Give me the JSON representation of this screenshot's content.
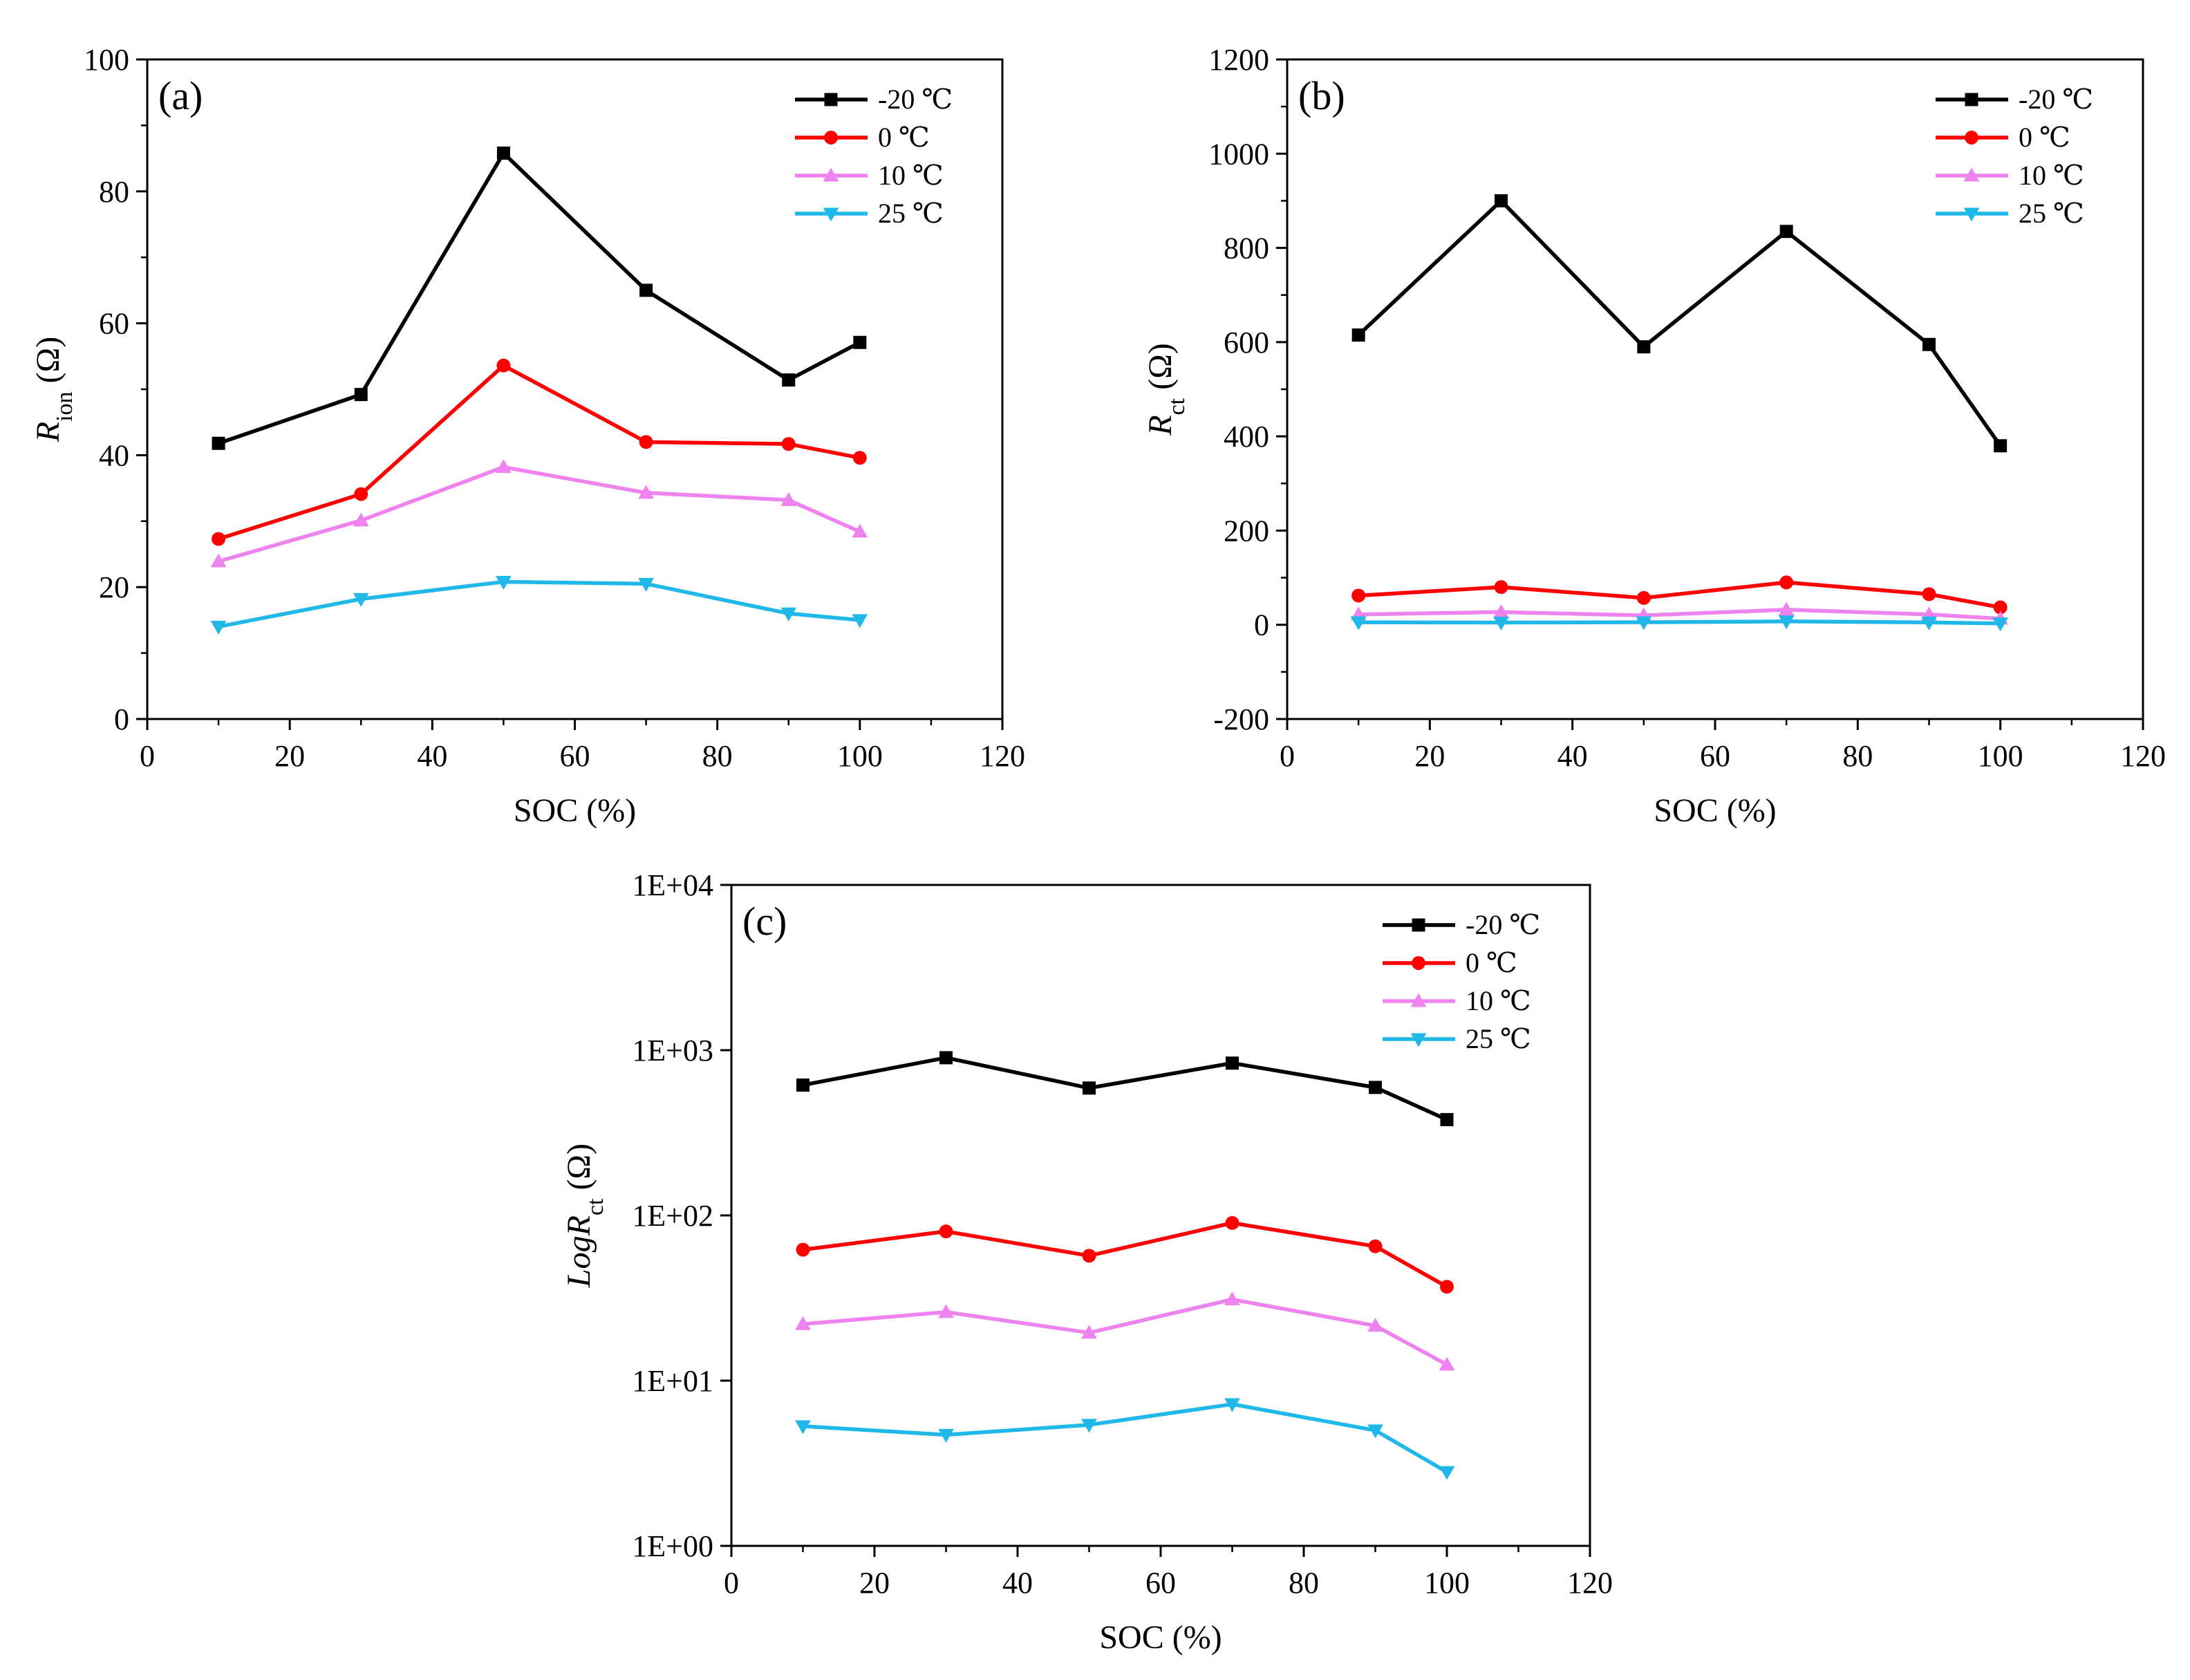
{
  "figure": {
    "description_label": "Three-panel resistance vs. SOC figure"
  },
  "chart_data": [
    {
      "panel": "(a)",
      "type": "line",
      "xlabel": "SOC (%)",
      "ylabel_main": "R",
      "ylabel_sub": "ion",
      "ylabel_unit": " (Ω)",
      "xlim": [
        0,
        120
      ],
      "ylim": [
        0,
        100
      ],
      "xticks": [
        "0",
        "20",
        "40",
        "60",
        "80",
        "100",
        "120"
      ],
      "yticks": [
        "0",
        "20",
        "40",
        "60",
        "80",
        "100"
      ],
      "scale": "linear",
      "legend_position": "top-right",
      "x": [
        10,
        30,
        50,
        70,
        90,
        100
      ],
      "series": [
        {
          "name": "-20 ℃",
          "color": "#000000",
          "marker": "square",
          "values": [
            41.8,
            49.2,
            85.8,
            65.0,
            51.4,
            57.1
          ]
        },
        {
          "name": "0 ℃",
          "color": "#ff0000",
          "marker": "circle",
          "values": [
            27.3,
            34.1,
            53.6,
            42.0,
            41.7,
            39.6
          ]
        },
        {
          "name": "10 ℃",
          "color": "#ee82ee",
          "marker": "triangle-up",
          "values": [
            23.9,
            30.1,
            38.2,
            34.3,
            33.2,
            28.4
          ]
        },
        {
          "name": "25 ℃",
          "color": "#1fb8e8",
          "marker": "triangle-down",
          "values": [
            14.0,
            18.2,
            20.8,
            20.5,
            16.0,
            15.0
          ]
        }
      ]
    },
    {
      "panel": "(b)",
      "type": "line",
      "xlabel": "SOC (%)",
      "ylabel_main": "R",
      "ylabel_sub": "ct",
      "ylabel_unit": " (Ω)",
      "xlim": [
        0,
        120
      ],
      "ylim": [
        -200,
        1200
      ],
      "xticks": [
        "0",
        "20",
        "40",
        "60",
        "80",
        "100",
        "120"
      ],
      "yticks": [
        "-200",
        "0",
        "200",
        "400",
        "600",
        "800",
        "1000",
        "1200"
      ],
      "scale": "linear",
      "legend_position": "top-right",
      "x": [
        10,
        30,
        50,
        70,
        90,
        100
      ],
      "series": [
        {
          "name": "-20 ℃",
          "color": "#000000",
          "marker": "square",
          "values": [
            615,
            900,
            590,
            835,
            595,
            380
          ]
        },
        {
          "name": "0 ℃",
          "color": "#ff0000",
          "marker": "circle",
          "values": [
            62,
            80,
            57,
            90,
            65,
            37
          ]
        },
        {
          "name": "10 ℃",
          "color": "#ee82ee",
          "marker": "triangle-up",
          "values": [
            22,
            27,
            20,
            32,
            22,
            13
          ]
        },
        {
          "name": "25 ℃",
          "color": "#1fb8e8",
          "marker": "triangle-down",
          "values": [
            5.3,
            4.7,
            5.4,
            7.2,
            5.0,
            2.8
          ]
        }
      ]
    },
    {
      "panel": "(c)",
      "type": "line",
      "xlabel": "SOC (%)",
      "ylabel_main": "LogR",
      "ylabel_sub": "ct",
      "ylabel_unit": " (Ω)",
      "xlim": [
        0,
        120
      ],
      "ylim": [
        1,
        10000
      ],
      "xticks": [
        "0",
        "20",
        "40",
        "60",
        "80",
        "100",
        "120"
      ],
      "yticks": [
        "1E+00",
        "1E+01",
        "1E+02",
        "1E+03",
        "1E+04"
      ],
      "scale": "log",
      "legend_position": "top-right",
      "x": [
        10,
        30,
        50,
        70,
        90,
        100
      ],
      "series": [
        {
          "name": "-20 ℃",
          "color": "#000000",
          "marker": "square",
          "values": [
            615,
            900,
            590,
            835,
            595,
            380
          ]
        },
        {
          "name": "0 ℃",
          "color": "#ff0000",
          "marker": "circle",
          "values": [
            62,
            80,
            57,
            90,
            65,
            37
          ]
        },
        {
          "name": "10 ℃",
          "color": "#ee82ee",
          "marker": "triangle-up",
          "values": [
            22,
            26,
            19.5,
            31,
            21.5,
            12.5
          ]
        },
        {
          "name": "25 ℃",
          "color": "#1fb8e8",
          "marker": "triangle-down",
          "values": [
            5.3,
            4.7,
            5.4,
            7.2,
            5.0,
            2.8
          ]
        }
      ]
    }
  ]
}
